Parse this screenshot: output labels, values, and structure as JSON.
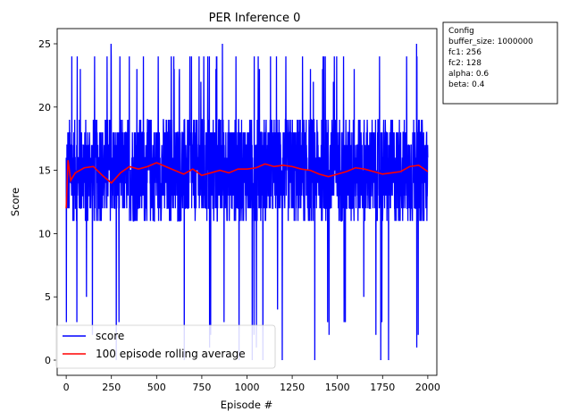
{
  "chart_data": {
    "type": "line",
    "title": "PER Inference 0",
    "xlabel": "Episode #",
    "ylabel": "Score",
    "xlim": [
      -50,
      2050
    ],
    "ylim": [
      -1.2,
      26.2
    ],
    "x_ticks": [
      0,
      250,
      500,
      750,
      1000,
      1250,
      1500,
      1750,
      2000
    ],
    "y_ticks": [
      0,
      5,
      10,
      15,
      20,
      25
    ],
    "grid": false,
    "legend_position": "lower-left",
    "series": [
      {
        "name": "score",
        "color": "#0000ff",
        "x_range": [
          0,
          2000
        ],
        "baseline_min": 11,
        "baseline_max": 19,
        "spike_high_values": [
          24,
          24,
          23,
          24,
          24,
          25,
          24,
          24,
          24,
          23,
          24,
          24,
          24,
          24,
          23,
          22,
          23,
          24,
          24,
          24,
          22,
          24
        ],
        "spike_low_values": [
          3,
          3,
          5,
          2,
          0,
          3,
          0,
          1,
          2,
          3,
          0,
          0,
          2,
          1,
          0,
          4,
          0,
          0,
          3,
          2
        ]
      },
      {
        "name": "100 episode rolling average",
        "color": "#ff0000",
        "x": [
          0,
          10,
          25,
          50,
          100,
          150,
          200,
          250,
          300,
          350,
          400,
          450,
          500,
          550,
          600,
          650,
          700,
          750,
          800,
          850,
          900,
          950,
          1000,
          1050,
          1100,
          1150,
          1200,
          1250,
          1300,
          1350,
          1400,
          1450,
          1500,
          1550,
          1600,
          1650,
          1700,
          1750,
          1800,
          1850,
          1900,
          1950,
          2000
        ],
        "values": [
          12.0,
          15.8,
          14.2,
          14.8,
          15.2,
          15.3,
          14.6,
          14.0,
          14.8,
          15.3,
          15.1,
          15.3,
          15.6,
          15.3,
          15.0,
          14.7,
          15.1,
          14.6,
          14.8,
          15.0,
          14.8,
          15.1,
          15.1,
          15.2,
          15.5,
          15.3,
          15.4,
          15.3,
          15.1,
          15.0,
          14.7,
          14.5,
          14.7,
          14.9,
          15.2,
          15.1,
          14.9,
          14.7,
          14.8,
          14.9,
          15.3,
          15.4,
          14.9
        ]
      }
    ]
  },
  "config_box": {
    "title": "Config",
    "lines": [
      "buffer_size: 1000000",
      "fc1: 256",
      "fc2: 128",
      "alpha: 0.6",
      "beta: 0.4"
    ]
  }
}
